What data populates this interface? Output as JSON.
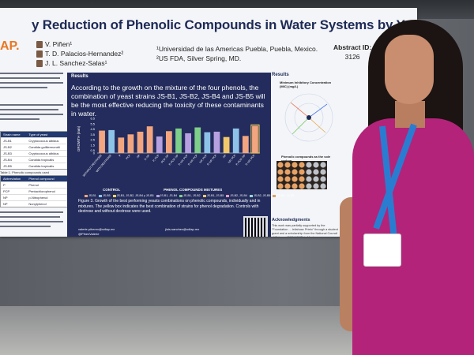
{
  "poster": {
    "title": "y Reduction of Phenolic Compounds in Water Systems by Yeasts",
    "logo_text": "AP.",
    "authors": [
      "V. Piñen¹",
      "T. D. Palacios-Hernandez²",
      "J. L. Sanchez-Salas¹"
    ],
    "affiliations": [
      "¹Universidad de las Americas Puebla, Puebla, Mexico.",
      "²US FDA, Silver Spring, MD."
    ],
    "abstract_label": "Abstract ID:",
    "abstract_id": "3126",
    "left_table": {
      "headers": [
        "Strain name",
        "Type of yeast"
      ],
      "rows": [
        [
          "JS-B1",
          "Cryptococcus albidus"
        ],
        [
          "JS-B2",
          "Candida guilliermondii"
        ],
        [
          "JS-B3",
          "Cryptococcus albidus"
        ],
        [
          "JS-B4",
          "Candida tropicalis"
        ],
        [
          "JS-B5",
          "Candida tropicalis"
        ]
      ],
      "caption": "Table 1. Phenolic compounds used"
    },
    "compound_table": {
      "headers": [
        "Abbreviation",
        "Phenol compound"
      ],
      "rows": [
        [
          "P",
          "Phenol"
        ],
        [
          "PCP",
          "Pentachlorophenol"
        ],
        [
          "NP",
          "p-Nitrophenol"
        ],
        [
          "NP",
          "Nonylphenol"
        ]
      ]
    },
    "results": {
      "heading": "Results",
      "text": "According to the growth on the mixture of the four phenols, the combination of yeast strains JS-B1, JS-B2, JS-B4 and JS-B5 will be the most effective reducing the toxicity of these contaminants in water.",
      "caption": "Figure 3. Growth of the best performing yeasts combinations on phenolic compounds, individually and in mixtures. The yellow box indicates the best combination of strains for phenol degradation. Controls with dextrose and without dextrose were used.",
      "contact_1": "valerie.pihenrv@udlap.mx",
      "contact_1b": "@PihenValerie",
      "contact_2": "jluis.sanchez@udlap.mx"
    },
    "right": {
      "heading": "Results",
      "mic_title": "Minimum Inhibitory Concentration (MIC) (mg/L)",
      "phenolic_title": "Phenolic compounds as the sole carbon",
      "ack_heading": "Acknowledgments",
      "ack_text": "This work was partially supported by the \"Foundation ... Ixtlahuac Prieto\" through a student grant and a scholarship from the National Council of Science (CONACYT) in Mexico."
    }
  },
  "chart_data": {
    "type": "bar",
    "ylabel": "GROWTH (mm)",
    "ylim": [
      0,
      6.5
    ],
    "yticks": [
      0,
      0.5,
      1.5,
      2.5,
      3.5,
      4.5,
      5.5,
      6.5
    ],
    "group_labels": [
      "CONTROL",
      "PHENOL COMPOUNDS MIXTURES"
    ],
    "categories": [
      "WITHOUT DEXTROSE",
      "WITH DEXTROSE",
      "P",
      "PCP",
      "NP",
      "P, NP",
      "P, PCP",
      "PCP, NP",
      "P, PCP, NP",
      "P, NP, PCP",
      "P, NP, PCP",
      "NP, PCP",
      "P, NP, PCP",
      "NP",
      "NP, PCP",
      "P, PCP, NP",
      "P, NP, PCP"
    ],
    "values": [
      4.2,
      4.3,
      2.9,
      3.5,
      4.0,
      5.0,
      3.1,
      4.1,
      4.6,
      3.7,
      4.8,
      3.9,
      4.0,
      3.0,
      4.6,
      3.2,
      5.1
    ],
    "colors": [
      "#f2a57f",
      "#8ec3e8",
      "#f2a57f",
      "#f2a57f",
      "#f2a57f",
      "#f2a57f",
      "#b7a0e0",
      "#f2a57f",
      "#7ecf8a",
      "#b7a0e0",
      "#7ecf8a",
      "#8ec3e8",
      "#b7a0e0",
      "#f2c86b",
      "#8ec3e8",
      "#f2a57f",
      "#f2a57f"
    ],
    "highlight_index": 16,
    "legend": [
      "JS-B1",
      "JS-B5",
      "JS-B1, JS-B2, JS-B4 y JS-B5",
      "JS-B1, JS-B4",
      "JS-B1, JS-B2",
      "JS-B1, JS-B5",
      "JS-B2, JS-B4",
      "JS-B2, JS-B5",
      "JS-B4, JS-B5"
    ],
    "legend_colors": [
      "#f2a57f",
      "#8ec3e8",
      "#f6d75a",
      "#b7a0e0",
      "#7ecf8a",
      "#f2c86b",
      "#e89ac0",
      "#9ad5d0",
      "#d6a26b"
    ]
  }
}
